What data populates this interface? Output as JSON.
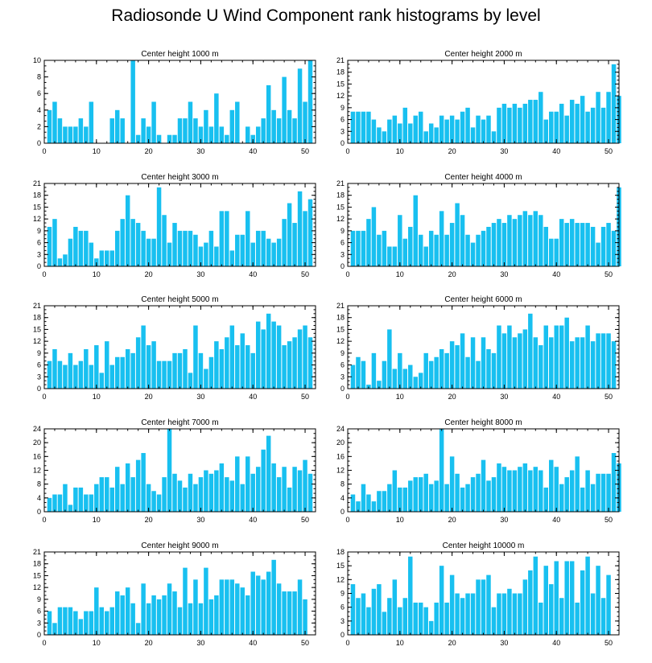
{
  "title": "Radiosonde U Wind Component rank histograms by level",
  "bar_color": "#18C0F0",
  "chart_data": [
    {
      "type": "bar",
      "title": "Center height 1000 m",
      "ylim": [
        0,
        10
      ],
      "yticks": [
        0,
        2,
        4,
        6,
        8,
        10
      ],
      "xlim": [
        0,
        52
      ],
      "xticks": [
        0,
        10,
        20,
        30,
        40,
        50
      ],
      "values": [
        4,
        5,
        3,
        2,
        2,
        2,
        3,
        2,
        5,
        0,
        0,
        0,
        3,
        4,
        3,
        0,
        10,
        1,
        3,
        2,
        5,
        1,
        0,
        1,
        1,
        3,
        3,
        5,
        3,
        2,
        4,
        2,
        6,
        2,
        1,
        4,
        5,
        0,
        2,
        1,
        2,
        3,
        7,
        4,
        3,
        8,
        4,
        3,
        9,
        5,
        10
      ]
    },
    {
      "type": "bar",
      "title": "Center height 2000 m",
      "ylim": [
        0,
        21
      ],
      "yticks": [
        0,
        3,
        6,
        9,
        12,
        15,
        18,
        21
      ],
      "xlim": [
        0,
        52
      ],
      "xticks": [
        0,
        10,
        20,
        30,
        40,
        50
      ],
      "values": [
        8,
        8,
        8,
        8,
        6,
        4,
        3,
        6,
        7,
        5,
        9,
        5,
        7,
        8,
        3,
        5,
        4,
        7,
        6,
        7,
        6,
        8,
        9,
        4,
        7,
        6,
        7,
        3,
        9,
        10,
        9,
        10,
        9,
        10,
        11,
        11,
        13,
        6,
        8,
        8,
        10,
        7,
        11,
        10,
        12,
        8,
        9,
        13,
        9,
        13,
        20,
        12
      ]
    },
    {
      "type": "bar",
      "title": "Center height 3000 m",
      "ylim": [
        0,
        21
      ],
      "yticks": [
        0,
        3,
        6,
        9,
        12,
        15,
        18,
        21
      ],
      "xlim": [
        0,
        52
      ],
      "xticks": [
        0,
        10,
        20,
        30,
        40,
        50
      ],
      "values": [
        10,
        12,
        2,
        3,
        7,
        10,
        9,
        9,
        6,
        2,
        4,
        4,
        4,
        9,
        12,
        18,
        12,
        11,
        9,
        7,
        7,
        20,
        13,
        6,
        11,
        9,
        9,
        9,
        8,
        5,
        6,
        9,
        5,
        14,
        14,
        4,
        8,
        8,
        14,
        6,
        9,
        9,
        7,
        6,
        7,
        12,
        16,
        11,
        19,
        14,
        17
      ]
    },
    {
      "type": "bar",
      "title": "Center height 4000 m",
      "ylim": [
        0,
        21
      ],
      "yticks": [
        0,
        3,
        6,
        9,
        12,
        15,
        18,
        21
      ],
      "xlim": [
        0,
        52
      ],
      "xticks": [
        0,
        10,
        20,
        30,
        40,
        50
      ],
      "values": [
        9,
        9,
        9,
        12,
        15,
        8,
        9,
        5,
        5,
        13,
        7,
        10,
        18,
        8,
        5,
        9,
        8,
        14,
        8,
        11,
        16,
        13,
        8,
        6,
        8,
        9,
        10,
        11,
        12,
        11,
        13,
        12,
        13,
        14,
        13,
        14,
        13,
        10,
        7,
        7,
        12,
        11,
        12,
        11,
        11,
        11,
        10,
        6,
        10,
        11,
        9,
        20
      ]
    },
    {
      "type": "bar",
      "title": "Center height 5000 m",
      "ylim": [
        0,
        21
      ],
      "yticks": [
        0,
        3,
        6,
        9,
        12,
        15,
        18,
        21
      ],
      "xlim": [
        0,
        52
      ],
      "xticks": [
        0,
        10,
        20,
        30,
        40,
        50
      ],
      "values": [
        7,
        10,
        7,
        6,
        9,
        6,
        7,
        10,
        6,
        11,
        4,
        12,
        6,
        8,
        8,
        10,
        9,
        13,
        16,
        11,
        12,
        7,
        7,
        7,
        9,
        9,
        10,
        4,
        16,
        9,
        5,
        8,
        12,
        10,
        13,
        16,
        11,
        14,
        11,
        9,
        17,
        15,
        19,
        17,
        16,
        11,
        12,
        13,
        15,
        16,
        13
      ]
    },
    {
      "type": "bar",
      "title": "Center height 6000 m",
      "ylim": [
        0,
        21
      ],
      "yticks": [
        0,
        3,
        6,
        9,
        12,
        15,
        18,
        21
      ],
      "xlim": [
        0,
        52
      ],
      "xticks": [
        0,
        10,
        20,
        30,
        40,
        50
      ],
      "values": [
        6,
        8,
        7,
        1,
        9,
        2,
        7,
        15,
        5,
        9,
        5,
        6,
        3,
        4,
        9,
        7,
        8,
        10,
        9,
        12,
        11,
        14,
        8,
        13,
        7,
        13,
        10,
        9,
        16,
        14,
        16,
        13,
        14,
        15,
        19,
        13,
        11,
        16,
        13,
        16,
        16,
        18,
        12,
        13,
        13,
        16,
        12,
        14,
        14,
        14,
        12
      ]
    },
    {
      "type": "bar",
      "title": "Center height 7000 m",
      "ylim": [
        0,
        24
      ],
      "yticks": [
        0,
        4,
        8,
        12,
        16,
        20,
        24
      ],
      "xlim": [
        0,
        52
      ],
      "xticks": [
        0,
        10,
        20,
        30,
        40,
        50
      ],
      "values": [
        4,
        5,
        5,
        8,
        2,
        7,
        7,
        5,
        5,
        8,
        10,
        10,
        7,
        13,
        8,
        14,
        10,
        15,
        17,
        8,
        6,
        5,
        10,
        24,
        11,
        9,
        7,
        11,
        8,
        10,
        12,
        11,
        12,
        14,
        10,
        9,
        16,
        8,
        16,
        11,
        13,
        18,
        22,
        14,
        10,
        13,
        7,
        13,
        12,
        15,
        11
      ]
    },
    {
      "type": "bar",
      "title": "Center height 8000 m",
      "ylim": [
        0,
        24
      ],
      "yticks": [
        0,
        4,
        8,
        12,
        16,
        20,
        24
      ],
      "xlim": [
        0,
        52
      ],
      "xticks": [
        0,
        10,
        20,
        30,
        40,
        50
      ],
      "values": [
        5,
        3,
        8,
        5,
        3,
        6,
        6,
        8,
        12,
        7,
        7,
        9,
        10,
        10,
        11,
        8,
        9,
        24,
        8,
        16,
        11,
        7,
        8,
        10,
        11,
        15,
        9,
        10,
        14,
        13,
        12,
        12,
        13,
        14,
        12,
        13,
        12,
        7,
        15,
        13,
        8,
        10,
        12,
        16,
        7,
        12,
        8,
        11,
        11,
        11,
        17,
        14
      ]
    },
    {
      "type": "bar",
      "title": "Center height 9000 m",
      "ylim": [
        0,
        21
      ],
      "yticks": [
        0,
        3,
        6,
        9,
        12,
        15,
        18,
        21
      ],
      "xlim": [
        0,
        52
      ],
      "xticks": [
        0,
        10,
        20,
        30,
        40,
        50
      ],
      "values": [
        6,
        3,
        7,
        7,
        7,
        6,
        4,
        6,
        6,
        12,
        7,
        6,
        7,
        11,
        10,
        12,
        8,
        3,
        13,
        8,
        10,
        9,
        10,
        13,
        11,
        7,
        17,
        8,
        14,
        8,
        17,
        9,
        10,
        14,
        14,
        14,
        13,
        12,
        10,
        16,
        15,
        14,
        16,
        19,
        13,
        11,
        11,
        11,
        14,
        9
      ]
    },
    {
      "type": "bar",
      "title": "Center height 10000 m",
      "ylim": [
        0,
        18
      ],
      "yticks": [
        0,
        3,
        6,
        9,
        12,
        15,
        18
      ],
      "xlim": [
        0,
        52
      ],
      "xticks": [
        0,
        10,
        20,
        30,
        40,
        50
      ],
      "values": [
        11,
        8,
        9,
        6,
        10,
        11,
        5,
        8,
        12,
        6,
        8,
        17,
        7,
        7,
        6,
        3,
        7,
        15,
        7,
        13,
        9,
        8,
        9,
        9,
        12,
        12,
        13,
        6,
        9,
        9,
        10,
        9,
        9,
        12,
        14,
        17,
        7,
        15,
        11,
        16,
        8,
        16,
        16,
        7,
        14,
        17,
        9,
        15,
        8,
        13
      ]
    }
  ]
}
